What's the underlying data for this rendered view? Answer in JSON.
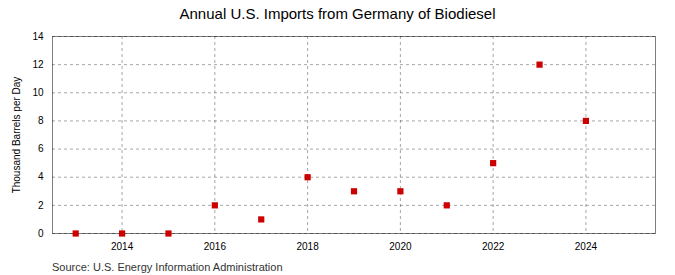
{
  "chart_data": {
    "type": "scatter",
    "title": "Annual U.S. Imports from Germany of Biodiesel",
    "ylabel": "Thousand Barrels per Day",
    "source": "Source: U.S. Energy Information Administration",
    "x": [
      2013,
      2014,
      2015,
      2016,
      2017,
      2018,
      2019,
      2020,
      2021,
      2022,
      2023,
      2024
    ],
    "values": [
      0.0,
      0.0,
      0.0,
      2.0,
      1.0,
      4.0,
      3.0,
      3.0,
      2.0,
      5.0,
      12.0,
      8.0
    ],
    "color": "#cc0000",
    "marker": "square",
    "xlim": [
      2012.5,
      2025.5
    ],
    "xticks": [
      2014,
      2016,
      2018,
      2020,
      2022,
      2024
    ],
    "ylim": [
      0,
      14
    ],
    "yticks": [
      0,
      2,
      4,
      6,
      8,
      10,
      12,
      14
    ],
    "grid": true
  }
}
